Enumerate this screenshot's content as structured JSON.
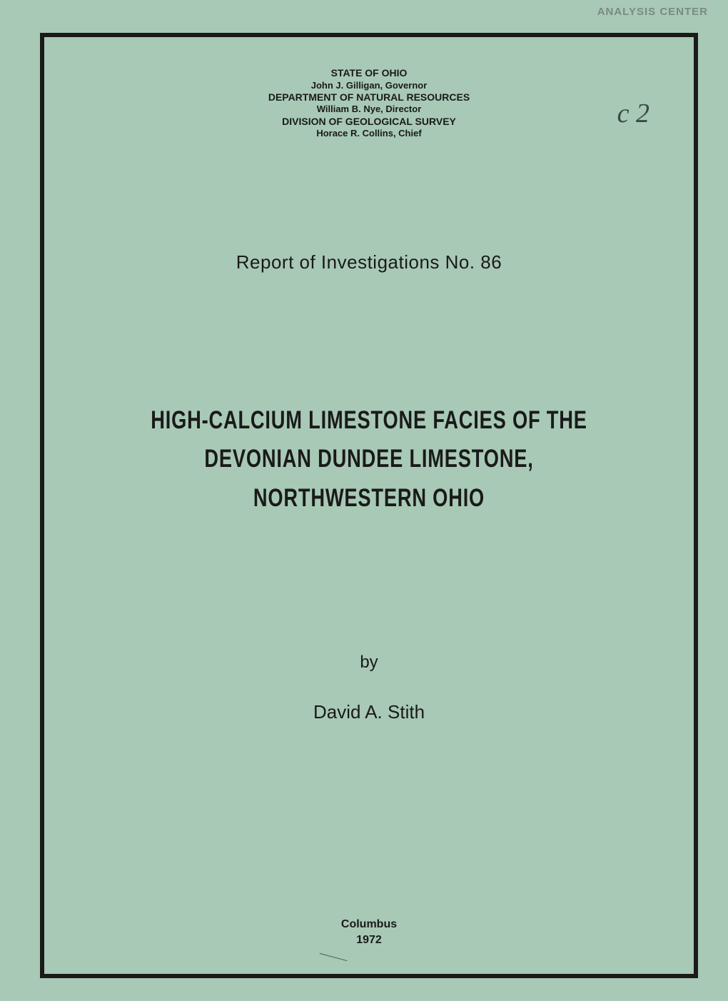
{
  "corner_stamp": "ANALYSIS CENTER",
  "annotation": "c 2",
  "header": {
    "line1": "STATE OF OHIO",
    "line2": "John J. Gilligan, Governor",
    "line3": "DEPARTMENT OF NATURAL RESOURCES",
    "line4": "William B. Nye, Director",
    "line5": "DIVISION OF GEOLOGICAL SURVEY",
    "line6": "Horace R. Collins, Chief"
  },
  "report_number": "Report of Investigations No. 86",
  "title": {
    "line1": "HIGH-CALCIUM LIMESTONE FACIES OF THE",
    "line2": "DEVONIAN DUNDEE LIMESTONE,",
    "line3": "NORTHWESTERN OHIO"
  },
  "by_label": "by",
  "author": "David A. Stith",
  "location": "Columbus",
  "year": "1972",
  "colors": {
    "background": "#a8c9b5",
    "text": "#1a1a1a",
    "border": "#1a1a1a",
    "stamp": "#7a8a82",
    "annotation": "#3a4a42"
  }
}
